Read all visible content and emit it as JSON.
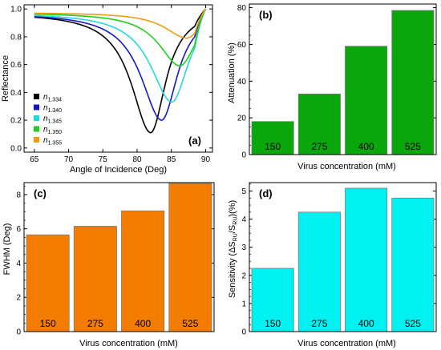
{
  "chart_data": [
    {
      "panel": "(a)",
      "type": "line",
      "xlabel": "Angle of Incidence (Deg)",
      "ylabel": "Reflectance",
      "xlim": [
        63.5,
        91
      ],
      "ylim": [
        -0.03,
        1.03
      ],
      "xticks": [
        "65",
        "70",
        "75",
        "80",
        "85",
        "90"
      ],
      "yticks": [
        "0.0",
        "0.2",
        "0.4",
        "0.6",
        "0.8",
        "1.0"
      ],
      "legend_position": "bottom-left",
      "series": [
        {
          "name": "n",
          "sub": "1.334",
          "color": "#000000",
          "min_x": 82.0,
          "min_y": 0.11,
          "width": 3.0
        },
        {
          "name": "n",
          "sub": "1.340",
          "color": "#1515c8",
          "min_x": 83.6,
          "min_y": 0.2,
          "width": 3.2
        },
        {
          "name": "n",
          "sub": "1.345",
          "color": "#22d8dc",
          "min_x": 85.1,
          "min_y": 0.33,
          "width": 3.3
        },
        {
          "name": "n",
          "sub": "1.350",
          "color": "#1ecf1e",
          "min_x": 86.3,
          "min_y": 0.59,
          "width": 3.3
        },
        {
          "name": "n",
          "sub": "1.355",
          "color": "#f39a14",
          "min_x": 87.3,
          "min_y": 0.79,
          "width": 3.4
        }
      ]
    },
    {
      "panel": "(b)",
      "type": "bar",
      "color": "#0aa70a",
      "xlabel": "Virus concentration (mM)",
      "ylabel": "Attenuation (%)",
      "ylim": [
        0,
        82
      ],
      "yticks": [
        "0",
        "20",
        "40",
        "60",
        "80"
      ],
      "categories": [
        "150",
        "275",
        "400",
        "525"
      ],
      "values": [
        18,
        33,
        59,
        78.5
      ]
    },
    {
      "panel": "(c)",
      "type": "bar",
      "color": "#f47c00",
      "xlabel": "Virus concentration (mM)",
      "ylabel": "FWHM (Deg)",
      "ylim": [
        0,
        8.7
      ],
      "yticks": [
        "0",
        "2",
        "4",
        "6",
        "8"
      ],
      "categories": [
        "150",
        "275",
        "400",
        "525"
      ],
      "values": [
        5.65,
        6.15,
        7.05,
        8.65
      ]
    },
    {
      "panel": "(d)",
      "type": "bar",
      "color": "#00f1f1",
      "xlabel": "Virus concentration (mM)",
      "ylabel": "Sensitivity (ΔS",
      "ylabel_rest": ")(%)",
      "ylim": [
        0,
        5.3
      ],
      "yticks": [
        "0",
        "1",
        "2",
        "3",
        "4",
        "5"
      ],
      "categories": [
        "150",
        "275",
        "400",
        "525"
      ],
      "values": [
        2.25,
        4.25,
        5.1,
        4.75
      ]
    }
  ]
}
